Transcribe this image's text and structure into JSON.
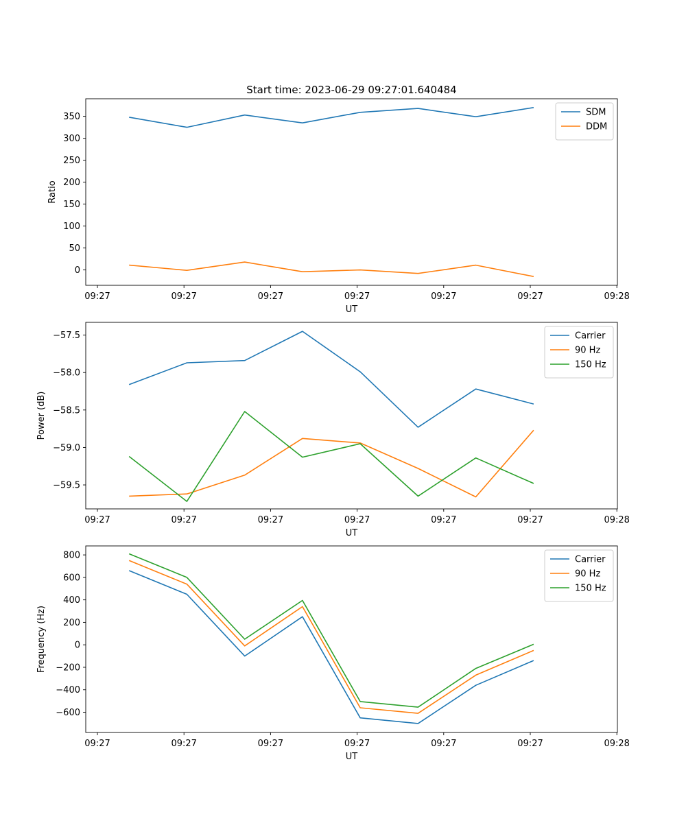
{
  "chart_data": [
    {
      "type": "line",
      "title": "Start time: 2023-06-29 09:27:01.640484",
      "xlabel": "UT",
      "ylabel": "Ratio",
      "xtick_labels": [
        "09:27",
        "09:27",
        "09:27",
        "09:27",
        "09:27",
        "09:27",
        "09:28"
      ],
      "xlim": [
        -0.75,
        8.45
      ],
      "ylim": [
        -35,
        390
      ],
      "yticks": [
        0,
        50,
        100,
        150,
        200,
        250,
        300,
        350
      ],
      "legend": "top-right",
      "grid": false,
      "x": [
        0,
        1,
        2,
        3,
        4,
        5,
        6,
        7
      ],
      "series": [
        {
          "name": "SDM",
          "color": "#1f77b4",
          "values": [
            348,
            325,
            353,
            335,
            359,
            368,
            349,
            370
          ]
        },
        {
          "name": "DDM",
          "color": "#ff7f0e",
          "values": [
            11,
            -1,
            18,
            -4,
            0,
            -8,
            11,
            -15
          ]
        }
      ]
    },
    {
      "type": "line",
      "title": "",
      "xlabel": "UT",
      "ylabel": "Power (dB)",
      "xtick_labels": [
        "09:27",
        "09:27",
        "09:27",
        "09:27",
        "09:27",
        "09:27",
        "09:28"
      ],
      "xlim": [
        -0.75,
        8.45
      ],
      "ylim": [
        -59.82,
        -57.33
      ],
      "yticks": [
        -59.5,
        -59.0,
        -58.5,
        -58.0,
        -57.5
      ],
      "legend": "top-right",
      "grid": false,
      "x": [
        0,
        1,
        2,
        3,
        4,
        5,
        6,
        7
      ],
      "series": [
        {
          "name": "Carrier",
          "color": "#1f77b4",
          "values": [
            -58.16,
            -57.87,
            -57.84,
            -57.45,
            -57.99,
            -58.73,
            -58.22,
            -58.42
          ]
        },
        {
          "name": "90 Hz",
          "color": "#ff7f0e",
          "values": [
            -59.65,
            -59.62,
            -59.37,
            -58.88,
            -58.94,
            -59.28,
            -59.66,
            -58.77
          ]
        },
        {
          "name": "150 Hz",
          "color": "#2ca02c",
          "values": [
            -59.12,
            -59.72,
            -58.52,
            -59.13,
            -58.95,
            -59.65,
            -59.14,
            -59.48
          ]
        }
      ]
    },
    {
      "type": "line",
      "title": "",
      "xlabel": "UT",
      "ylabel": "Frequency (Hz)",
      "xtick_labels": [
        "09:27",
        "09:27",
        "09:27",
        "09:27",
        "09:27",
        "09:27",
        "09:28"
      ],
      "xlim": [
        -0.75,
        8.45
      ],
      "ylim": [
        -780,
        880
      ],
      "yticks": [
        -600,
        -400,
        -200,
        0,
        200,
        400,
        600,
        800
      ],
      "legend": "top-right",
      "grid": false,
      "x": [
        0,
        1,
        2,
        3,
        4,
        5,
        6,
        7
      ],
      "series": [
        {
          "name": "Carrier",
          "color": "#1f77b4",
          "values": [
            660,
            450,
            -100,
            250,
            -650,
            -700,
            -360,
            -140
          ]
        },
        {
          "name": "90 Hz",
          "color": "#ff7f0e",
          "values": [
            750,
            540,
            -10,
            340,
            -560,
            -610,
            -270,
            -50
          ]
        },
        {
          "name": "150 Hz",
          "color": "#2ca02c",
          "values": [
            810,
            600,
            50,
            395,
            -505,
            -555,
            -210,
            5
          ]
        }
      ]
    }
  ]
}
